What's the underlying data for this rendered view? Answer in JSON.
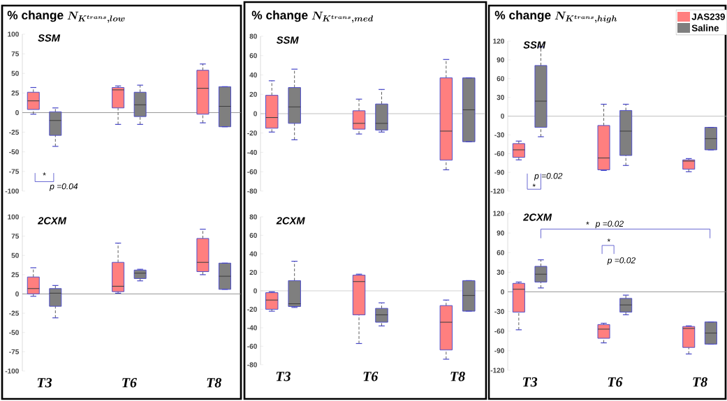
{
  "chart_data": [
    {
      "type": "box",
      "title": "\\mbox{\\% change}\\ N_{K^{trans},low}",
      "subtitle": "SSM",
      "categories": [
        null,
        null,
        null
      ],
      "ylim": [
        -100,
        100
      ],
      "yticks": [
        -100,
        -75,
        -50,
        -25,
        0,
        25,
        50,
        75,
        100
      ],
      "ref_lines": [
        {
          "axis": "y",
          "value": 0,
          "color": "#808080"
        }
      ],
      "annotations": [
        "*",
        "p =0.04"
      ],
      "series": [
        {
          "color": "#ff7f7f",
          "boxes": [
            {
              "low": -2,
              "q1": 4,
              "median": 15,
              "q3": 26,
              "high": 32
            },
            {
              "low": -15,
              "q1": 6,
              "median": 29,
              "q3": 32,
              "high": 34
            },
            {
              "low": -13,
              "q1": -2,
              "median": 31,
              "q3": 54,
              "high": 62
            }
          ]
        },
        {
          "color": "#7f7f7f",
          "boxes": [
            {
              "low": -43,
              "q1": -29,
              "median": -10,
              "q3": 1,
              "high": 6
            },
            {
              "low": -15,
              "q1": -5,
              "median": 10,
              "q3": 26,
              "high": 35
            },
            {
              "low": -18,
              "q1": -18,
              "median": 8,
              "q3": 33,
              "high": 33
            }
          ]
        }
      ]
    },
    {
      "type": "box",
      "title": "\\mbox{\\% change}\\ N_{K^{trans},med}",
      "subtitle": "SSM",
      "categories": [
        null,
        null,
        null
      ],
      "ylim": [
        -80,
        80
      ],
      "yticks": [
        -80,
        -60,
        -40,
        -20,
        0,
        20,
        40,
        60,
        80
      ],
      "ref_lines": [
        {
          "axis": "y",
          "value": 0,
          "color": "#b0b0b0"
        }
      ],
      "series": [
        {
          "color": "#ff7f7f",
          "boxes": [
            {
              "low": -19,
              "q1": -15,
              "median": -4,
              "q3": 19,
              "high": 34
            },
            {
              "low": -21,
              "q1": -16,
              "median": -10,
              "q3": 3,
              "high": 15
            },
            {
              "low": -58,
              "q1": -48,
              "median": -18,
              "q3": 37,
              "high": 56
            }
          ]
        },
        {
          "color": "#7f7f7f",
          "boxes": [
            {
              "low": -27,
              "q1": -10,
              "median": 7,
              "q3": 27,
              "high": 46
            },
            {
              "low": -19,
              "q1": -17,
              "median": -10,
              "q3": 10,
              "high": 25
            },
            {
              "low": -29,
              "q1": -29,
              "median": 4,
              "q3": 37,
              "high": 37
            }
          ]
        }
      ]
    },
    {
      "type": "box",
      "title": "\\mbox{\\% change}\\ N_{K^{trans},high}",
      "subtitle": "SSM",
      "categories": [
        null,
        null,
        null
      ],
      "ylim": [
        -120,
        120
      ],
      "yticks": [
        -120,
        -90,
        -60,
        -30,
        0,
        30,
        60,
        90,
        120
      ],
      "ref_lines": [
        {
          "axis": "y",
          "value": 0,
          "color": "#b0b0b0"
        }
      ],
      "annotations": [
        "p =0.02",
        "*"
      ],
      "legend": "top right",
      "series": [
        {
          "name": "JAS239",
          "color": "#ff7f7f",
          "boxes": [
            {
              "low": -70,
              "q1": -66,
              "median": -54,
              "q3": -44,
              "high": -40
            },
            {
              "low": -87,
              "q1": -86,
              "median": -67,
              "q3": -15,
              "high": 19
            },
            {
              "low": -89,
              "q1": -85,
              "median": -72,
              "q3": -70,
              "high": -68
            }
          ]
        },
        {
          "name": "Saline",
          "color": "#7f7f7f",
          "boxes": [
            {
              "low": -33,
              "q1": -18,
              "median": 24,
              "q3": 81,
              "high": 111
            },
            {
              "low": -79,
              "q1": -63,
              "median": -24,
              "q3": 9,
              "high": 19
            },
            {
              "low": -54,
              "q1": -54,
              "median": -36,
              "q3": -18,
              "high": -18
            }
          ]
        }
      ]
    },
    {
      "type": "box",
      "subtitle": "2CXM",
      "categories": [
        "T3",
        "T6",
        "T8"
      ],
      "ylim": [
        -100,
        100
      ],
      "yticks": [
        -100,
        -75,
        -50,
        -25,
        0,
        25,
        50,
        75,
        100
      ],
      "ref_lines": [
        {
          "axis": "y",
          "value": 0,
          "color": "#808080"
        }
      ],
      "series": [
        {
          "color": "#ff7f7f",
          "boxes": [
            {
              "low": -3,
              "q1": 0,
              "median": 7,
              "q3": 22,
              "high": 34
            },
            {
              "low": 1,
              "q1": 3,
              "median": 10,
              "q3": 41,
              "high": 66
            },
            {
              "low": 25,
              "q1": 29,
              "median": 41,
              "q3": 72,
              "high": 84
            }
          ]
        },
        {
          "color": "#7f7f7f",
          "boxes": [
            {
              "low": -31,
              "q1": -16,
              "median": 1,
              "q3": 7,
              "high": 11
            },
            {
              "low": 17,
              "q1": 20,
              "median": 27,
              "q3": 31,
              "high": 32
            },
            {
              "low": 6,
              "q1": 6,
              "median": 23,
              "q3": 40,
              "high": 40
            }
          ]
        }
      ]
    },
    {
      "type": "box",
      "subtitle": "2CXM",
      "categories": [
        "T3",
        "T6",
        "T8"
      ],
      "ylim": [
        -80,
        80
      ],
      "yticks": [
        -80,
        -60,
        -40,
        -20,
        0,
        20,
        40,
        60,
        80
      ],
      "ref_lines": [
        {
          "axis": "y",
          "value": 0,
          "color": "#c8c8c8"
        }
      ],
      "series": [
        {
          "color": "#ff7f7f",
          "boxes": [
            {
              "low": -22,
              "q1": -20,
              "median": -10,
              "q3": -2,
              "high": -1
            },
            {
              "low": -57,
              "q1": -26,
              "median": 10,
              "q3": 17,
              "high": 18
            },
            {
              "low": -74,
              "q1": -64,
              "median": -34,
              "q3": -16,
              "high": -10
            }
          ]
        },
        {
          "color": "#7f7f7f",
          "boxes": [
            {
              "low": -18,
              "q1": -17,
              "median": -14,
              "q3": 11,
              "high": 32
            },
            {
              "low": -38,
              "q1": -34,
              "median": -26,
              "q3": -19,
              "high": -13
            },
            {
              "low": -22,
              "q1": -22,
              "median": -5,
              "q3": 11,
              "high": 11
            }
          ]
        }
      ]
    },
    {
      "type": "box",
      "subtitle": "2CXM",
      "categories": [
        "T3",
        "T6",
        "T8"
      ],
      "ylim": [
        -120,
        120
      ],
      "yticks": [
        -120,
        -90,
        -60,
        -30,
        0,
        30,
        60,
        90,
        120
      ],
      "ref_lines": [
        {
          "axis": "y",
          "value": 0,
          "color": "#808080"
        }
      ],
      "annotations": [
        "*",
        "p =0.02",
        "*",
        "p =0.02"
      ],
      "series": [
        {
          "color": "#ff7f7f",
          "boxes": [
            {
              "low": -58,
              "q1": -31,
              "median": 4,
              "q3": 13,
              "high": 15
            },
            {
              "low": -78,
              "q1": -71,
              "median": -57,
              "q3": -50,
              "high": -48
            },
            {
              "low": -95,
              "q1": -85,
              "median": -56,
              "q3": -53,
              "high": -52
            }
          ]
        },
        {
          "color": "#7f7f7f",
          "boxes": [
            {
              "low": 6,
              "q1": 15,
              "median": 27,
              "q3": 39,
              "high": 49
            },
            {
              "low": -35,
              "q1": -31,
              "median": -20,
              "q3": -10,
              "high": -5
            },
            {
              "low": -80,
              "q1": -80,
              "median": -63,
              "q3": -46,
              "high": -46
            }
          ]
        }
      ]
    }
  ]
}
